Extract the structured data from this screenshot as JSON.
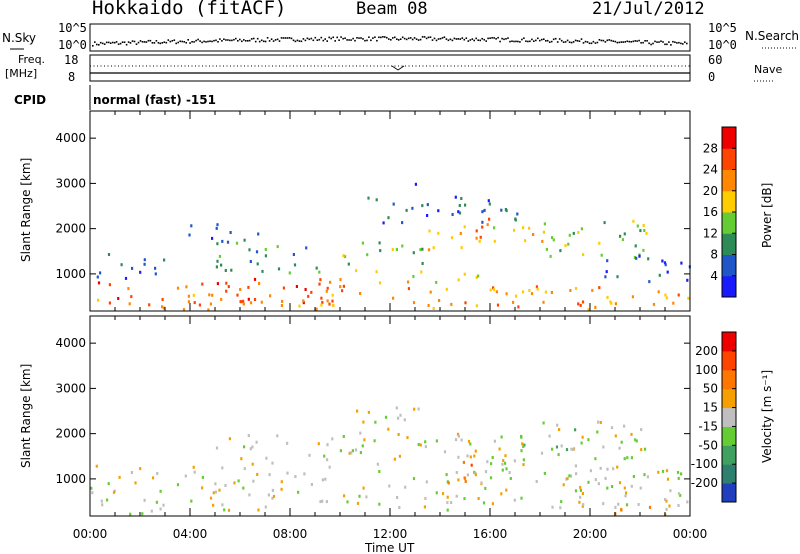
{
  "header": {
    "station": "Hokkaido (fitACF)",
    "beam": "Beam 08",
    "date": "21/Jul/2012"
  },
  "noise_panel": {
    "left_label": "N.Sky",
    "right_label": "N.Search",
    "left_ticks": [
      "10^5",
      "10^0"
    ],
    "right_ticks": [
      "10^5",
      "10^0"
    ]
  },
  "freq_panel": {
    "left_label_line1": "Freq.",
    "left_label_line2": "[MHz]",
    "right_label": "Nave",
    "left_ticks": [
      "18",
      "8"
    ],
    "right_ticks": [
      "60",
      "0"
    ]
  },
  "cpid": {
    "label": "CPID",
    "value": "normal (fast) -151"
  },
  "x_axis": {
    "label": "Time UT",
    "ticks": [
      "00:00",
      "04:00",
      "08:00",
      "12:00",
      "16:00",
      "20:00",
      "00:00"
    ]
  },
  "chart_data": [
    {
      "type": "heatmap",
      "name": "power",
      "ylabel": "Slant Range [km]",
      "yticks": [
        "1000",
        "2000",
        "3000",
        "4000"
      ],
      "ylim": [
        180,
        4600
      ],
      "xlim_hours": [
        0,
        24
      ],
      "colorbar": {
        "label": "Power [dB]",
        "ticks": [
          "4",
          "8",
          "12",
          "16",
          "20",
          "24",
          "28"
        ],
        "colors": [
          "#1a1aff",
          "#1f57c8",
          "#2e8b57",
          "#66cc33",
          "#ffcc00",
          "#ff8800",
          "#ff4400",
          "#ee0000"
        ]
      },
      "bands": [
        {
          "x0": 0.3,
          "x1": 10.5,
          "y0": 300,
          "y1": 900,
          "level": 6
        },
        {
          "x0": 0.0,
          "x1": 24.0,
          "y0": 200,
          "y1": 420,
          "level": 5
        },
        {
          "x0": 3.0,
          "x1": 24.0,
          "y0": 450,
          "y1": 720,
          "level": 5
        },
        {
          "x0": 10.5,
          "x1": 15.5,
          "y0": 780,
          "y1": 1100,
          "level": 4
        },
        {
          "x0": 0.0,
          "x1": 3.0,
          "y0": 900,
          "y1": 1450,
          "level": 1
        },
        {
          "x0": 5.0,
          "x1": 9.5,
          "y0": 1000,
          "y1": 1700,
          "level": 2
        },
        {
          "x0": 9.5,
          "x1": 13.5,
          "y0": 1200,
          "y1": 1700,
          "level": 3
        },
        {
          "x0": 13.5,
          "x1": 16.0,
          "y0": 1500,
          "y1": 2300,
          "level": 5
        },
        {
          "x0": 15.5,
          "x1": 18.5,
          "y0": 1700,
          "y1": 2200,
          "level": 4
        },
        {
          "x0": 18.0,
          "x1": 22.5,
          "y0": 1300,
          "y1": 2200,
          "level": 3
        },
        {
          "x0": 20.5,
          "x1": 24.0,
          "y0": 800,
          "y1": 1400,
          "level": 1
        },
        {
          "x0": 11.0,
          "x1": 18.0,
          "y0": 2100,
          "y1": 2700,
          "level": 1
        },
        {
          "x0": 3.5,
          "x1": 7.0,
          "y0": 1700,
          "y1": 2100,
          "level": 1
        },
        {
          "x0": 12.5,
          "x1": 13.0,
          "y0": 2900,
          "y1": 3300,
          "level": 1
        }
      ]
    },
    {
      "type": "heatmap",
      "name": "velocity",
      "ylabel": "Slant Range [km]",
      "yticks": [
        "1000",
        "2000",
        "3000",
        "4000"
      ],
      "ylim": [
        180,
        4600
      ],
      "xlim_hours": [
        0,
        24
      ],
      "colorbar": {
        "label": "Velocity [m s⁻¹]",
        "ticks": [
          "200",
          "100",
          "50",
          "15",
          "-15",
          "-50",
          "-100",
          "-200"
        ],
        "colors": [
          "#1f3fbf",
          "#2f7f6f",
          "#3fa060",
          "#66cc33",
          "#bfbfbf",
          "#f5a000",
          "#ff7700",
          "#ff4400",
          "#ee0000"
        ]
      },
      "bands": [
        {
          "x0": 0.0,
          "x1": 24.0,
          "y0": 300,
          "y1": 1300,
          "level": 4
        },
        {
          "x0": 5.0,
          "x1": 18.5,
          "y0": 1300,
          "y1": 2000,
          "level": 4
        },
        {
          "x0": 18.0,
          "x1": 22.5,
          "y0": 1400,
          "y1": 2300,
          "level": 4
        },
        {
          "x0": 14.0,
          "x1": 16.0,
          "y0": 900,
          "y1": 1400,
          "level": 6
        },
        {
          "x0": 0.5,
          "x1": 3.0,
          "y0": 200,
          "y1": 450,
          "level": 3
        },
        {
          "x0": 17.0,
          "x1": 19.5,
          "y0": 1600,
          "y1": 2100,
          "level": 3
        },
        {
          "x0": 20.0,
          "x1": 24.0,
          "y0": 200,
          "y1": 400,
          "level": 5
        },
        {
          "x0": 10.5,
          "x1": 13.5,
          "y0": 2000,
          "y1": 2600,
          "level": 4
        }
      ]
    }
  ]
}
